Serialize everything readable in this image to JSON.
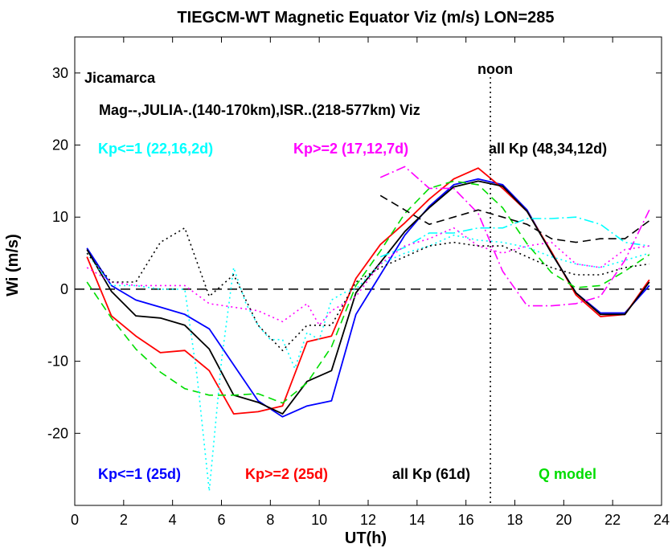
{
  "chart_data": {
    "type": "line",
    "title": "TIEGCM-WT Magnetic Equator Viz (m/s) LON=285",
    "xlabel": "UT(h)",
    "ylabel": "Wi (m/s)",
    "xlim": [
      0,
      24
    ],
    "ylim": [
      -30,
      35
    ],
    "xticks": [
      0,
      2,
      4,
      6,
      8,
      10,
      12,
      14,
      16,
      18,
      20,
      22,
      24
    ],
    "yticks": [
      -20,
      -10,
      0,
      10,
      20,
      30
    ],
    "xtick_labels": [
      "0",
      "2",
      "4",
      "6",
      "8",
      "10",
      "12",
      "14",
      "16",
      "18",
      "20",
      "22",
      "24"
    ],
    "ytick_labels": [
      "-20",
      "-10",
      "0",
      "10",
      "20",
      "30"
    ],
    "annotations": {
      "station": "Jicamarca",
      "sources": "Mag--,JULIA-.(140-170km),ISR..(218-577km) Viz",
      "noon": "noon",
      "noon_ut": 17,
      "group_low": "Kp<=1 (22,16,2d)",
      "group_high": "Kp>=2 (17,12,7d)",
      "group_all": "all Kp (48,34,12d)",
      "legend_low": "Kp<=1 (25d)",
      "legend_high": "Kp>=2 (25d)",
      "legend_all": "all Kp (61d)",
      "legend_model": "Q model"
    },
    "colors": {
      "low": "#0000ff",
      "high": "#ff0000",
      "all": "#000000",
      "model": "#00dd00",
      "cyan": "#00ffff",
      "magenta": "#ff00ff"
    },
    "series": [
      {
        "key": "mag_low",
        "color": "#0000ff",
        "style": "solid",
        "x": [
          0.5,
          1.5,
          2.5,
          3.5,
          4.5,
          5.5,
          6.5,
          7.5,
          8.5,
          9.5,
          10.5,
          11.5,
          12.5,
          13.5,
          14.5,
          15.5,
          16.5,
          17.5,
          18.5,
          19.5,
          20.5,
          21.5,
          22.5,
          23.5
        ],
        "y": [
          5.7,
          0.5,
          -1.5,
          -2.5,
          -3.5,
          -5.5,
          -10.5,
          -15.5,
          -17.7,
          -16.2,
          -15.5,
          -3.5,
          2.0,
          7.5,
          11.5,
          14.5,
          15.3,
          14.5,
          11.0,
          5.0,
          -0.5,
          -3.3,
          -3.3,
          0.5
        ]
      },
      {
        "key": "mag_high",
        "color": "#ff0000",
        "style": "solid",
        "x": [
          0.5,
          1.5,
          2.5,
          3.5,
          4.5,
          5.5,
          6.5,
          7.5,
          8.5,
          9.5,
          10.5,
          11.5,
          12.5,
          13.5,
          14.5,
          15.5,
          16.5,
          17.5,
          18.5,
          19.5,
          20.5,
          21.5,
          22.5,
          23.5
        ],
        "y": [
          4.5,
          -3.7,
          -6.5,
          -8.8,
          -8.5,
          -11.3,
          -17.3,
          -17.0,
          -16.2,
          -7.3,
          -6.5,
          1.5,
          6.2,
          9.2,
          12.5,
          15.3,
          16.8,
          14.0,
          10.8,
          5.2,
          -0.8,
          -3.8,
          -3.5,
          1.3
        ]
      },
      {
        "key": "mag_all",
        "color": "#000000",
        "style": "solid",
        "x": [
          0.5,
          1.5,
          2.5,
          3.5,
          4.5,
          5.5,
          6.5,
          7.5,
          8.5,
          9.5,
          10.5,
          11.5,
          12.5,
          13.5,
          14.5,
          15.5,
          16.5,
          17.5,
          18.5,
          19.5,
          20.5,
          21.5,
          22.5,
          23.5
        ],
        "y": [
          5.5,
          -0.3,
          -3.7,
          -4.0,
          -5.0,
          -8.3,
          -14.7,
          -15.7,
          -17.3,
          -12.8,
          -11.3,
          -0.5,
          3.7,
          8.0,
          11.3,
          14.2,
          15.0,
          14.3,
          10.8,
          5.0,
          -0.5,
          -3.5,
          -3.5,
          1.0
        ]
      },
      {
        "key": "q_model",
        "color": "#00dd00",
        "style": "dash",
        "x": [
          0.5,
          1.5,
          2.5,
          3.5,
          4.5,
          5.5,
          6.5,
          7.5,
          8.5,
          9.5,
          10.5,
          11.5,
          12.5,
          13.5,
          14.5,
          15.5,
          16.5,
          17.5,
          18.5,
          19.5,
          20.5,
          21.5,
          22.5,
          23.5
        ],
        "y": [
          1.0,
          -4.0,
          -8.3,
          -11.5,
          -13.8,
          -14.7,
          -14.7,
          -14.5,
          -15.8,
          -13.0,
          -8.0,
          0.5,
          5.3,
          10.5,
          14.0,
          15.0,
          14.5,
          11.3,
          6.3,
          2.3,
          0.2,
          0.5,
          2.5,
          4.8
        ]
      },
      {
        "key": "julia_low",
        "color": "#00ffff",
        "style": "dashdot",
        "x": [
          12.5,
          13.5,
          14.5,
          15.5,
          16.5,
          17.5,
          18.5,
          19.5,
          20.5,
          21.5,
          22.5,
          23.5
        ],
        "y": [
          4.5,
          5.8,
          7.8,
          7.8,
          8.5,
          8.5,
          9.8,
          9.8,
          10.0,
          9.0,
          6.5,
          6.0
        ]
      },
      {
        "key": "julia_high",
        "color": "#ff00ff",
        "style": "dashdot",
        "x": [
          12.5,
          13.5,
          14.5,
          15.5,
          16.5,
          17.5,
          18.5,
          19.5,
          20.5,
          21.5,
          22.5,
          23.5
        ],
        "y": [
          15.5,
          17.0,
          14.0,
          14.0,
          10.5,
          2.5,
          -2.3,
          -2.3,
          -2.0,
          -1.0,
          4.0,
          11.0
        ]
      },
      {
        "key": "julia_all",
        "color": "#000000",
        "style": "dash",
        "x": [
          12.5,
          13.5,
          14.5,
          15.5,
          16.5,
          17.5,
          18.5,
          19.5,
          20.5,
          21.5,
          22.5,
          23.5
        ],
        "y": [
          13.0,
          11.0,
          9.0,
          10.0,
          11.0,
          10.0,
          9.0,
          7.0,
          6.5,
          7.0,
          7.0,
          9.5
        ]
      },
      {
        "key": "isr_low",
        "color": "#00ffff",
        "style": "dot",
        "x": [
          0.5,
          1.5,
          2.5,
          3.5,
          4.5,
          5.0,
          5.5,
          6.0,
          6.5,
          7.0,
          7.5,
          8.0,
          8.5,
          9.0,
          9.5,
          10.0,
          10.5,
          11.0,
          11.5,
          12.5,
          13.5,
          14.5,
          15.5,
          16.5,
          17.5,
          18.5,
          19.5,
          20.5,
          21.5,
          22.5,
          23.5
        ],
        "y": [
          5.0,
          0.5,
          0.5,
          0.0,
          0.0,
          -12.0,
          -28.0,
          -10.0,
          3.0,
          -2.0,
          -5.0,
          -7.0,
          -7.0,
          -11.0,
          -6.0,
          -7.0,
          -1.5,
          -0.5,
          0.0,
          3.5,
          5.0,
          6.0,
          7.5,
          6.8,
          6.5,
          5.8,
          4.5,
          3.5,
          3.0,
          4.0,
          5.0
        ]
      },
      {
        "key": "isr_high",
        "color": "#ff00ff",
        "style": "dot",
        "x": [
          0.5,
          1.5,
          2.5,
          3.5,
          4.5,
          5.5,
          6.5,
          7.5,
          8.5,
          9.5,
          10.0,
          10.5,
          11.0,
          11.5,
          12.5,
          13.5,
          14.5,
          15.5,
          16.5,
          17.5,
          18.5,
          19.5,
          20.5,
          21.5,
          22.5,
          23.5
        ],
        "y": [
          3.0,
          1.0,
          0.5,
          0.5,
          0.5,
          -2.0,
          -2.5,
          -3.0,
          -4.5,
          -2.0,
          -5.0,
          -3.0,
          -2.0,
          -1.0,
          3.5,
          6.0,
          7.0,
          8.5,
          6.0,
          5.0,
          6.0,
          6.5,
          3.5,
          3.0,
          5.5,
          6.0
        ]
      },
      {
        "key": "isr_all",
        "color": "#000000",
        "style": "dot",
        "x": [
          0.5,
          1.5,
          2.5,
          3.5,
          4.5,
          5.5,
          6.5,
          7.5,
          8.5,
          9.5,
          10.5,
          11.5,
          12.5,
          13.5,
          14.5,
          15.5,
          16.5,
          17.5,
          18.5,
          19.5,
          20.5,
          21.5,
          22.5,
          23.5
        ],
        "y": [
          5.0,
          1.0,
          1.0,
          6.5,
          8.5,
          -1.0,
          2.0,
          -5.0,
          -8.5,
          -5.0,
          -5.0,
          1.0,
          3.0,
          4.5,
          6.0,
          6.5,
          6.0,
          6.0,
          4.5,
          3.0,
          2.0,
          2.0,
          3.0,
          3.5
        ]
      }
    ]
  }
}
